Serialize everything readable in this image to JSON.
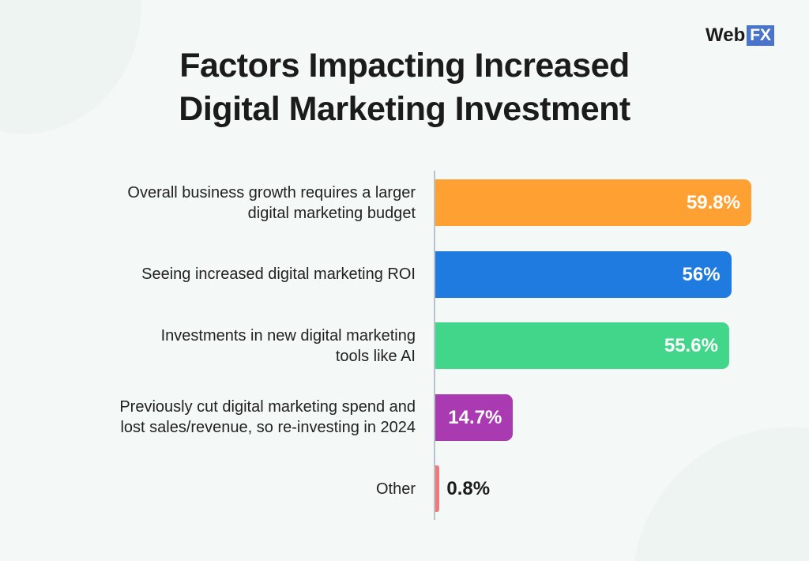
{
  "logo": {
    "text_main": "Web",
    "text_box": "FX"
  },
  "chart_data": {
    "type": "bar",
    "orientation": "horizontal",
    "title": "Factors Impacting Increased Digital Marketing Investment",
    "categories": [
      "Overall business growth requires a larger digital marketing budget",
      "Seeing increased digital marketing ROI",
      "Investments in new digital marketing tools like AI",
      "Previously cut digital marketing spend and lost sales/revenue, so re-investing in 2024",
      "Other"
    ],
    "values": [
      59.8,
      56,
      55.6,
      14.7,
      0.8
    ],
    "data_labels": [
      "59.8%",
      "56%",
      "55.6%",
      "14.7%",
      "0.8%"
    ],
    "colors": [
      "#ffa033",
      "#1f7be0",
      "#41d68a",
      "#a93ab1",
      "#f07a7a"
    ],
    "xlim": [
      0,
      60
    ],
    "grid": false,
    "legend": "none"
  }
}
